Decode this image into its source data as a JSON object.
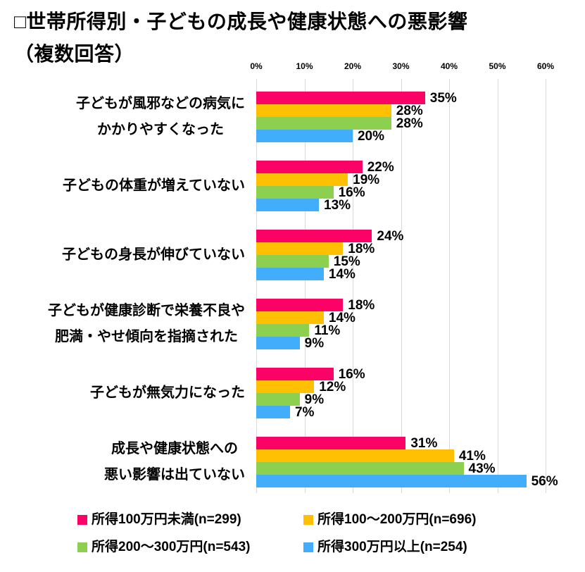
{
  "page": {
    "title_line1": "□世帯所得別・子どもの成長や健康状態への悪影響",
    "title_line2": "（複数回答）"
  },
  "chart_data": {
    "type": "bar",
    "orientation": "horizontal",
    "title": "世帯所得別・子どもの成長や健康状態への悪影響（複数回答）",
    "xlabel": "",
    "ylabel": "",
    "xlim": [
      0,
      60
    ],
    "x_ticks": [
      "0%",
      "10%",
      "20%",
      "30%",
      "40%",
      "50%",
      "60%"
    ],
    "grid": true,
    "legend_position": "bottom",
    "value_suffix": "%",
    "categories": [
      {
        "lines": [
          "子どもが風邪などの病気に",
          "かかりやすくなった"
        ]
      },
      {
        "lines": [
          "子どもの体重が増えていない"
        ]
      },
      {
        "lines": [
          "子どもの身長が伸びていない"
        ]
      },
      {
        "lines": [
          "子どもが健康診断で栄養不良や",
          "肥満・やせ傾向を指摘された"
        ]
      },
      {
        "lines": [
          "子どもが無気力になった"
        ]
      },
      {
        "lines": [
          "成長や健康状態への",
          "悪い影響は出ていない"
        ]
      }
    ],
    "series": [
      {
        "name": "所得100万円未満(n=299)",
        "color": "#FB0366",
        "values": [
          35,
          22,
          24,
          18,
          16,
          31
        ]
      },
      {
        "name": "所得100〜200万円(n=696)",
        "color": "#FFC003",
        "values": [
          28,
          19,
          18,
          14,
          12,
          41
        ]
      },
      {
        "name": "所得200〜300万円(n=543)",
        "color": "#8DD04F",
        "values": [
          28,
          16,
          15,
          11,
          9,
          43
        ]
      },
      {
        "name": "所得300万円以上(n=254)",
        "color": "#41ADFB",
        "values": [
          20,
          13,
          14,
          9,
          7,
          56
        ]
      }
    ]
  },
  "colors": {
    "gridline": "#D9D9D9",
    "text": "#000000",
    "background": "#FFFFFF"
  }
}
